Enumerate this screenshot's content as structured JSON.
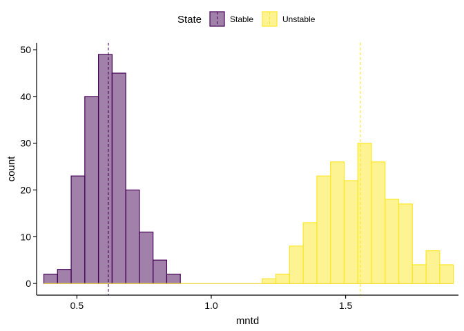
{
  "chart_data": {
    "type": "bar",
    "title": "",
    "xlabel": "mntd",
    "ylabel": "count",
    "xlim": [
      0.35,
      1.92
    ],
    "ylim": [
      -2.5,
      51.5
    ],
    "xticks": [
      0.5,
      1.0,
      1.5
    ],
    "xtick_labels": [
      "0.5",
      "1.0",
      "1.5"
    ],
    "yticks": [
      0,
      10,
      20,
      30,
      40,
      50
    ],
    "ytick_labels": [
      "0",
      "10",
      "20",
      "30",
      "40",
      "50"
    ],
    "grid": false,
    "legend": {
      "title": "State",
      "placement": "top",
      "entries": [
        "Stable",
        "Unstable"
      ]
    },
    "bin_start": 0.377,
    "bin_width": 0.0508,
    "series": [
      {
        "name": "Stable",
        "fill": "#440154",
        "stroke": "#440154",
        "mean_line_x": 0.617,
        "counts": [
          2,
          3,
          23,
          40,
          49,
          45,
          20,
          11,
          5,
          2,
          0,
          0,
          0,
          0,
          0,
          0,
          0,
          0,
          0,
          0,
          0,
          0,
          0,
          0,
          0,
          0,
          0,
          0,
          0,
          0
        ]
      },
      {
        "name": "Unstable",
        "fill": "#FDE725",
        "stroke": "#FDE725",
        "mean_line_x": 1.555,
        "counts": [
          0,
          0,
          0,
          0,
          0,
          0,
          0,
          0,
          0,
          0,
          0,
          0,
          0,
          0,
          0,
          0,
          1,
          2,
          8,
          13,
          23,
          26,
          22,
          30,
          26,
          18,
          17,
          4,
          7,
          4
        ]
      }
    ]
  }
}
